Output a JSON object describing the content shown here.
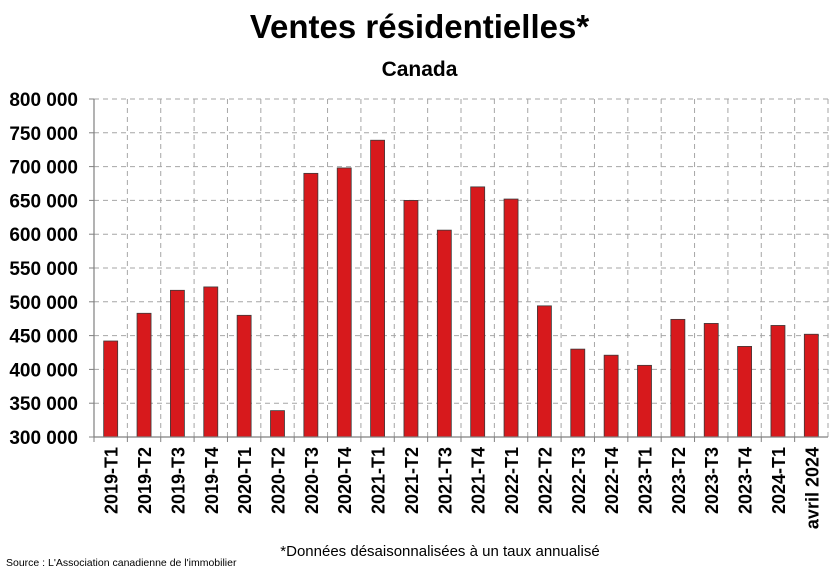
{
  "chart_data": {
    "type": "bar",
    "title": "Ventes résidentielles*",
    "subtitle": "Canada",
    "xlabel": "",
    "ylabel": "",
    "ylim": [
      300000,
      800000
    ],
    "yticks": [
      300000,
      350000,
      400000,
      450000,
      500000,
      550000,
      600000,
      650000,
      700000,
      750000,
      800000
    ],
    "ytick_labels": [
      "300 000",
      "350 000",
      "400 000",
      "450 000",
      "500 000",
      "550 000",
      "600 000",
      "650 000",
      "700 000",
      "750 000",
      "800 000"
    ],
    "grid": true,
    "bar_color": "#d7191c",
    "categories": [
      "2019-T1",
      "2019-T2",
      "2019-T3",
      "2019-T4",
      "2020-T1",
      "2020-T2",
      "2020-T3",
      "2020-T4",
      "2021-T1",
      "2021-T2",
      "2021-T3",
      "2021-T4",
      "2022-T1",
      "2022-T2",
      "2022-T3",
      "2022-T4",
      "2023-T1",
      "2023-T2",
      "2023-T3",
      "2023-T4",
      "2024-T1",
      "avril 2024"
    ],
    "values": [
      442000,
      483000,
      517000,
      522000,
      480000,
      339000,
      690000,
      698000,
      739000,
      650000,
      606000,
      670000,
      652000,
      494000,
      430000,
      421000,
      406000,
      474000,
      468000,
      434000,
      465000,
      452000
    ]
  },
  "footnote": "*Données désaisonnalisées à un taux annualisé",
  "source": "Source : L'Association canadienne de l'immobilier"
}
